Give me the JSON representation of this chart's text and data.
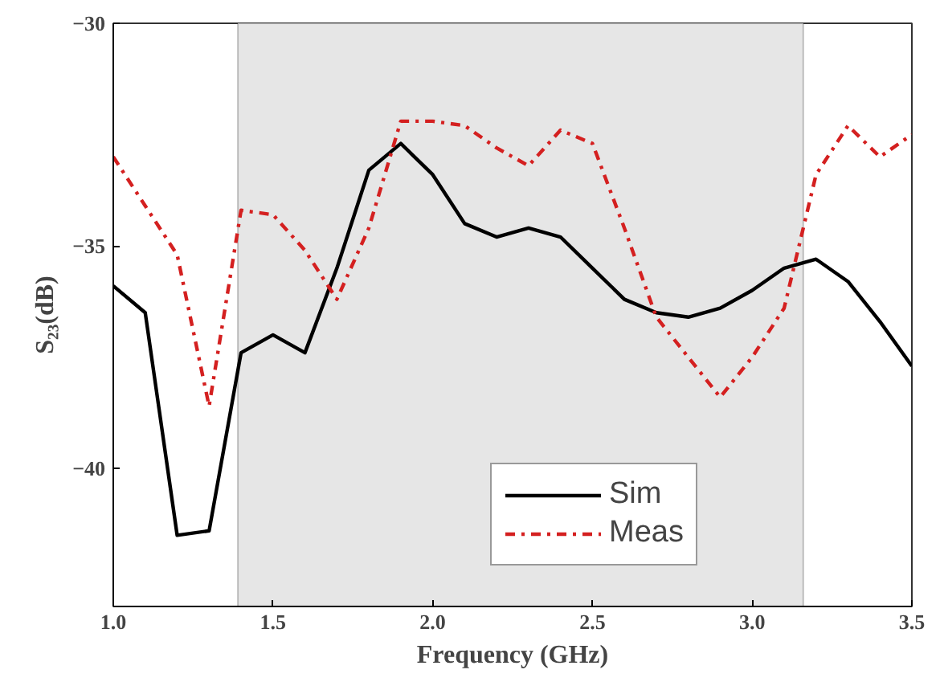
{
  "chart_data": {
    "type": "line",
    "xlabel": "Frequency (GHz)",
    "ylabel": "S₂₃(dB)",
    "x": [
      1.0,
      1.1,
      1.2,
      1.3,
      1.4,
      1.5,
      1.6,
      1.7,
      1.8,
      1.9,
      2.0,
      2.1,
      2.2,
      2.3,
      2.4,
      2.5,
      2.6,
      2.7,
      2.8,
      2.9,
      3.0,
      3.1,
      3.2,
      3.3,
      3.4,
      3.5
    ],
    "series": [
      {
        "name": "Sim",
        "color": "#000000",
        "line_style": "solid",
        "values": [
          -35.9,
          -36.5,
          -41.5,
          -41.4,
          -37.4,
          -37.0,
          -37.4,
          -35.5,
          -33.3,
          -32.7,
          -33.4,
          -34.5,
          -34.8,
          -34.6,
          -34.8,
          -35.5,
          -36.2,
          -36.5,
          -36.6,
          -36.4,
          -36.0,
          -35.5,
          -35.3,
          -35.8,
          -36.7,
          -37.7
        ]
      },
      {
        "name": "Meas",
        "color": "#d42020",
        "line_style": "dashdot",
        "values": [
          -33.0,
          -34.1,
          -35.2,
          -38.6,
          -34.2,
          -34.3,
          -35.1,
          -36.2,
          -34.6,
          -32.2,
          -32.2,
          -32.3,
          -32.8,
          -33.2,
          -32.4,
          -32.7,
          -34.6,
          -36.6,
          -37.5,
          -38.4,
          -37.5,
          -36.4,
          -33.4,
          -32.3,
          -33.0,
          -32.5
        ]
      }
    ],
    "xlim": [
      1.0,
      3.5
    ],
    "ylim": [
      -43.1,
      -30
    ],
    "xticks": [
      {
        "value": 1.0,
        "label": "1.0"
      },
      1.5,
      {
        "value": 2.0,
        "label": "2.0"
      },
      2.5,
      {
        "value": 3.0,
        "label": "3.0"
      },
      3.5
    ],
    "yticks": [
      -30,
      -35,
      -40
    ],
    "bands": [
      {
        "axis": "x",
        "from": 1.39,
        "to": 3.16,
        "color": "#e6e6e6"
      }
    ],
    "grid": false,
    "legend": "bottom",
    "marker": "none"
  }
}
